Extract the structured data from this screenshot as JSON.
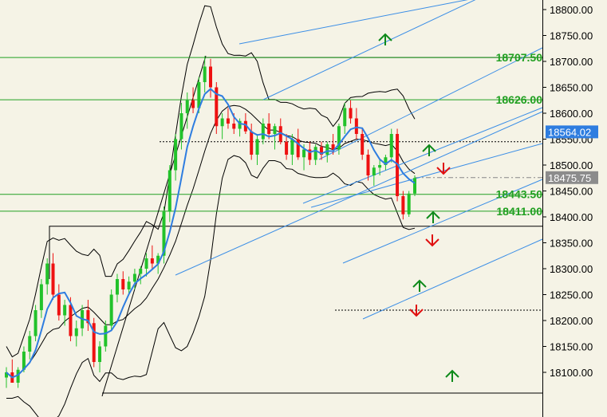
{
  "colors": {
    "background": "#f5f3e6",
    "axis_panel": "#f5f3e6",
    "bull_candle": "#22c22a",
    "bear_candle": "#ee1111",
    "blue_line": "#2e7de0",
    "channel_line": "#3b8ee6",
    "level_line": "#22a022",
    "level_label": "#22a022",
    "bollinger": "#000000",
    "price_label_bg": "#2e7de0",
    "current_label_bg": "#8c8c8c",
    "arrow_up": "#0e8a1a",
    "arrow_down": "#e01010"
  },
  "chart_data": {
    "type": "candlestick",
    "y_axis": {
      "range": [
        18055,
        18820
      ],
      "ticks": [
        18100,
        18150,
        18200,
        18250,
        18300,
        18350,
        18400,
        18450,
        18500,
        18550,
        18600,
        18650,
        18700,
        18750,
        18800
      ],
      "tick_labels": [
        "18100.00",
        "18150.00",
        "18200.00",
        "18250.00",
        "18300.00",
        "18350.00",
        "18400.00",
        "18450.00",
        "18500.00",
        "18550.00",
        "18600.00",
        "18650.00",
        "18700.00",
        "18750.00",
        "18800.00"
      ]
    },
    "price_tags": [
      {
        "label": "18564.02",
        "value": 18564.02,
        "style": "blue"
      },
      {
        "label": "18475.75",
        "value": 18475.75,
        "style": "gray"
      }
    ],
    "levels": [
      {
        "label": "18707.50",
        "value": 18707.5
      },
      {
        "label": "18626.00",
        "value": 18626.0
      },
      {
        "label": "18443.50",
        "value": 18443.5
      },
      {
        "label": "18411.00",
        "value": 18411.0
      }
    ],
    "candles": [
      [
        18090,
        18110,
        18070,
        18100
      ],
      [
        18100,
        18125,
        18085,
        18080
      ],
      [
        18080,
        18110,
        18070,
        18105
      ],
      [
        18105,
        18150,
        18100,
        18140
      ],
      [
        18140,
        18180,
        18125,
        18170
      ],
      [
        18170,
        18230,
        18160,
        18220
      ],
      [
        18220,
        18280,
        18205,
        18270
      ],
      [
        18270,
        18320,
        18250,
        18310
      ],
      [
        18310,
        18330,
        18240,
        18250
      ],
      [
        18250,
        18270,
        18200,
        18210
      ],
      [
        18210,
        18240,
        18190,
        18230
      ],
      [
        18230,
        18245,
        18160,
        18170
      ],
      [
        18170,
        18200,
        18150,
        18185
      ],
      [
        18185,
        18230,
        18170,
        18220
      ],
      [
        18220,
        18240,
        18180,
        18195
      ],
      [
        18195,
        18205,
        18110,
        18120
      ],
      [
        18120,
        18160,
        18100,
        18150
      ],
      [
        18150,
        18200,
        18140,
        18190
      ],
      [
        18190,
        18260,
        18180,
        18250
      ],
      [
        18250,
        18290,
        18235,
        18280
      ],
      [
        18280,
        18295,
        18250,
        18260
      ],
      [
        18260,
        18285,
        18250,
        18275
      ],
      [
        18275,
        18300,
        18260,
        18290
      ],
      [
        18290,
        18305,
        18270,
        18300
      ],
      [
        18300,
        18330,
        18285,
        18320
      ],
      [
        18320,
        18345,
        18300,
        18310
      ],
      [
        18310,
        18330,
        18290,
        18325
      ],
      [
        18325,
        18420,
        18310,
        18410
      ],
      [
        18410,
        18500,
        18390,
        18490
      ],
      [
        18490,
        18560,
        18470,
        18550
      ],
      [
        18550,
        18620,
        18530,
        18600
      ],
      [
        18600,
        18640,
        18570,
        18625
      ],
      [
        18625,
        18650,
        18600,
        18610
      ],
      [
        18610,
        18670,
        18600,
        18660
      ],
      [
        18660,
        18710,
        18640,
        18690
      ],
      [
        18690,
        18705,
        18630,
        18650
      ],
      [
        18650,
        18660,
        18560,
        18575
      ],
      [
        18575,
        18600,
        18550,
        18590
      ],
      [
        18590,
        18610,
        18570,
        18580
      ],
      [
        18580,
        18600,
        18560,
        18570
      ],
      [
        18570,
        18590,
        18555,
        18585
      ],
      [
        18585,
        18600,
        18560,
        18565
      ],
      [
        18565,
        18580,
        18510,
        18520
      ],
      [
        18520,
        18560,
        18500,
        18550
      ],
      [
        18550,
        18590,
        18540,
        18580
      ],
      [
        18580,
        18600,
        18550,
        18560
      ],
      [
        18560,
        18580,
        18530,
        18575
      ],
      [
        18575,
        18590,
        18540,
        18545
      ],
      [
        18545,
        18560,
        18510,
        18520
      ],
      [
        18520,
        18560,
        18500,
        18550
      ],
      [
        18550,
        18570,
        18510,
        18515
      ],
      [
        18515,
        18540,
        18490,
        18530
      ],
      [
        18530,
        18545,
        18500,
        18510
      ],
      [
        18510,
        18540,
        18500,
        18535
      ],
      [
        18535,
        18545,
        18510,
        18520
      ],
      [
        18520,
        18545,
        18505,
        18540
      ],
      [
        18540,
        18560,
        18520,
        18530
      ],
      [
        18530,
        18580,
        18520,
        18575
      ],
      [
        18575,
        18620,
        18560,
        18610
      ],
      [
        18610,
        18625,
        18580,
        18590
      ],
      [
        18590,
        18610,
        18550,
        18560
      ],
      [
        18560,
        18570,
        18510,
        18520
      ],
      [
        18520,
        18530,
        18470,
        18480
      ],
      [
        18480,
        18500,
        18460,
        18495
      ],
      [
        18495,
        18510,
        18480,
        18500
      ],
      [
        18500,
        18520,
        18490,
        18515
      ],
      [
        18515,
        18570,
        18505,
        18560
      ],
      [
        18560,
        18570,
        18430,
        18440
      ],
      [
        18440,
        18450,
        18395,
        18405
      ],
      [
        18405,
        18450,
        18400,
        18445
      ],
      [
        18445,
        18480,
        18440,
        18475
      ]
    ]
  }
}
